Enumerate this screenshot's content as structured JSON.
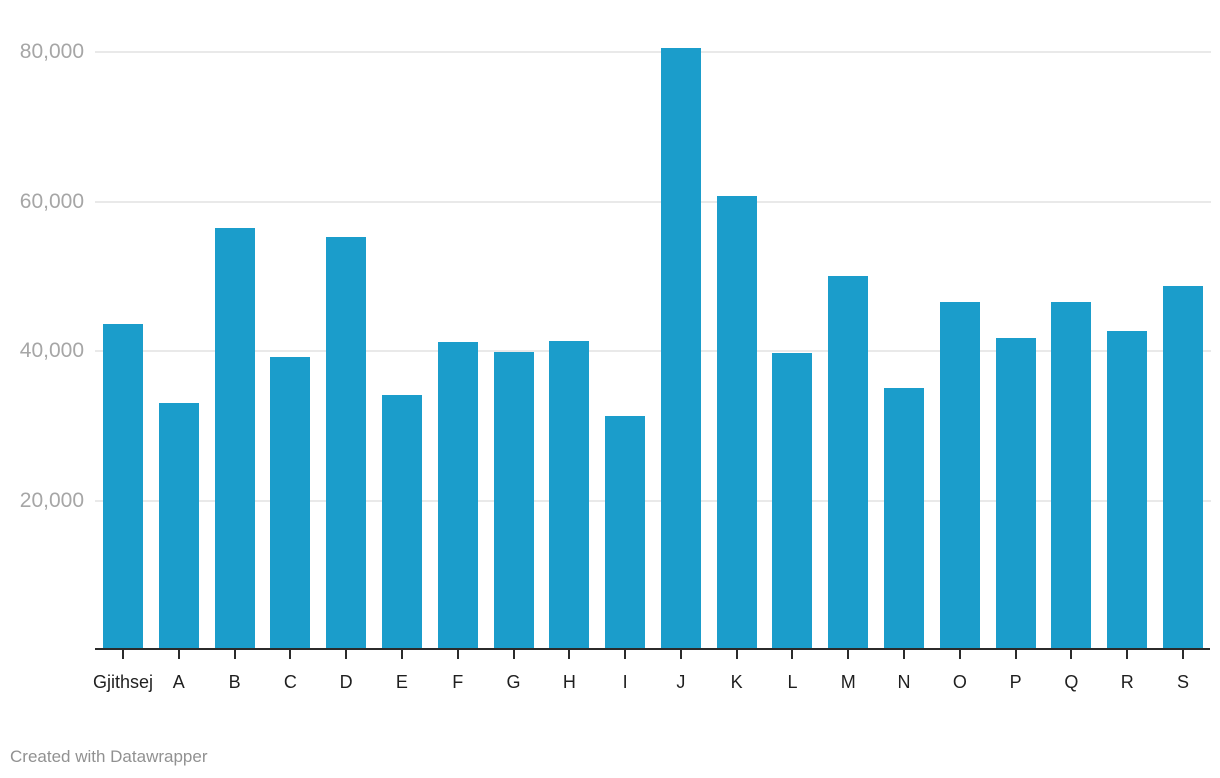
{
  "chart_data": {
    "type": "bar",
    "title": "",
    "xlabel": "",
    "ylabel": "",
    "categories": [
      "Gjithsej",
      "A",
      "B",
      "C",
      "D",
      "E",
      "F",
      "G",
      "H",
      "I",
      "J",
      "K",
      "L",
      "M",
      "N",
      "O",
      "P",
      "Q",
      "R",
      "S"
    ],
    "values": [
      43600,
      33000,
      56500,
      39200,
      55200,
      34100,
      41200,
      39800,
      41400,
      31300,
      80600,
      60700,
      39700,
      50100,
      35000,
      46600,
      41700,
      46600,
      42700,
      48700
    ],
    "ylim": [
      0,
      87000
    ],
    "yticks": [
      20000,
      40000,
      60000,
      80000
    ],
    "ytick_labels": [
      "20,000",
      "40,000",
      "60,000",
      "80,000"
    ],
    "grid": "horizontal-only",
    "legend": "none",
    "bar_color": "#1B9DCB"
  },
  "footer": {
    "credit": "Created with Datawrapper"
  },
  "colors": {
    "bar": "#1B9DCB",
    "gridline": "#E9E9E9",
    "axis_line": "#2B2B2B",
    "y_tick_label": "#A6A6A6",
    "x_tick_label": "#1F1F1F",
    "footer_text": "#919191",
    "background": "#FFFFFF"
  }
}
